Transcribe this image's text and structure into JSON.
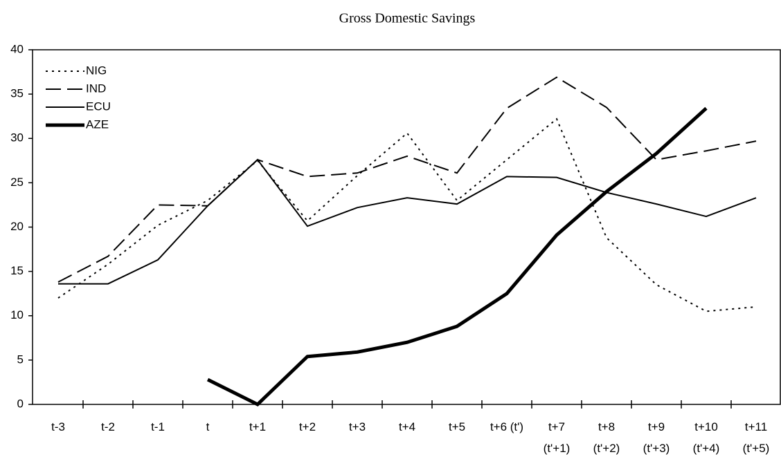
{
  "chart_data": {
    "type": "line",
    "title": "Gross Domestic Savings",
    "categories": [
      "t-3",
      "t-2",
      "t-1",
      "t",
      "t+1",
      "t+2",
      "t+3",
      "t+4",
      "t+5",
      "t+6 (t')",
      "t+7\n(t'+1)",
      "t+8\n(t'+2)",
      "t+9\n(t'+3)",
      "t+10\n(t'+4)",
      "t+11\n(t'+5)"
    ],
    "series": [
      {
        "name": "NIG",
        "color": "#000000",
        "dash": "3 6",
        "width": 2,
        "values": [
          12,
          15.8,
          20.2,
          23,
          27.5,
          20.7,
          25.8,
          30.6,
          23,
          27.6,
          32.2,
          18.8,
          13.5,
          10.5,
          11
        ]
      },
      {
        "name": "IND",
        "color": "#000000",
        "dash": "22 9",
        "width": 2,
        "values": [
          13.8,
          16.7,
          22.5,
          22.4,
          27.6,
          25.7,
          26.1,
          28,
          26.1,
          33.4,
          36.9,
          33.5,
          27.6,
          28.6,
          29.7
        ]
      },
      {
        "name": "ECU",
        "color": "#000000",
        "dash": "none",
        "width": 2,
        "values": [
          13.6,
          13.6,
          16.3,
          22.4,
          27.6,
          20.1,
          22.2,
          23.3,
          22.6,
          25.7,
          25.6,
          23.9,
          22.6,
          21.2,
          23.3
        ]
      },
      {
        "name": "AZE",
        "color": "#000000",
        "dash": "none",
        "width": 5,
        "values": [
          null,
          null,
          null,
          2.8,
          0,
          5.4,
          5.9,
          7,
          8.8,
          12.5,
          19.1,
          24,
          28.3,
          33.4,
          null
        ]
      }
    ],
    "ylim": [
      0,
      40
    ],
    "yticks": [
      0,
      5,
      10,
      15,
      20,
      25,
      30,
      35,
      40
    ],
    "grid": false,
    "legend": "upper left"
  }
}
